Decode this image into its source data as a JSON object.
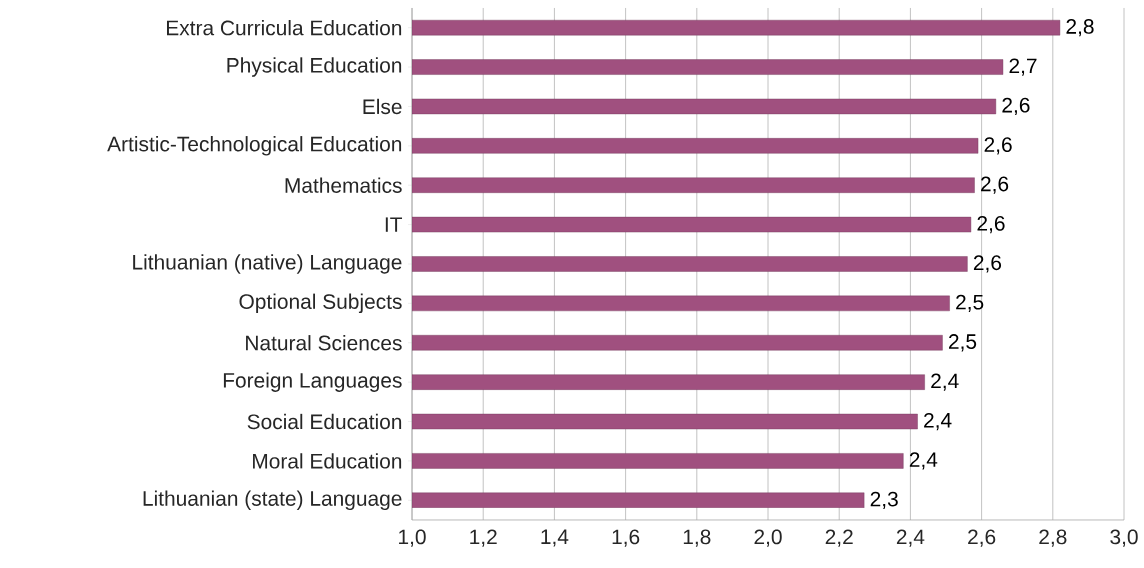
{
  "chart_data": {
    "type": "bar",
    "orientation": "horizontal",
    "categories": [
      "Extra Curricula Education",
      "Physical Education",
      "Else",
      "Artistic-Technological Education",
      "Mathematics",
      "IT",
      "Lithuanian (native) Language",
      "Optional Subjects",
      "Natural Sciences",
      "Foreign Languages",
      "Social Education",
      "Moral Education",
      "Lithuanian (state) Language"
    ],
    "values": [
      2.82,
      2.66,
      2.64,
      2.59,
      2.58,
      2.57,
      2.56,
      2.51,
      2.49,
      2.44,
      2.42,
      2.38,
      2.27
    ],
    "value_labels": [
      "2,8",
      "2,7",
      "2,6",
      "2,6",
      "2,6",
      "2,6",
      "2,6",
      "2,5",
      "2,5",
      "2,4",
      "2,4",
      "2,4",
      "2,3"
    ],
    "color": "#a0507f",
    "xlim": [
      1.0,
      3.0
    ],
    "xticks": [
      {
        "value": 1.0,
        "label": "1,0"
      },
      {
        "value": 1.2,
        "label": "1,2"
      },
      {
        "value": 1.4,
        "label": "1,4"
      },
      {
        "value": 1.6,
        "label": "1,6"
      },
      {
        "value": 1.8,
        "label": "1,8"
      },
      {
        "value": 2.0,
        "label": "2,0"
      },
      {
        "value": 2.2,
        "label": "2,2"
      },
      {
        "value": 2.4,
        "label": "2,4"
      },
      {
        "value": 2.6,
        "label": "2,6"
      },
      {
        "value": 2.8,
        "label": "2,8"
      },
      {
        "value": 3.0,
        "label": "3,0"
      }
    ],
    "grid": "x"
  }
}
